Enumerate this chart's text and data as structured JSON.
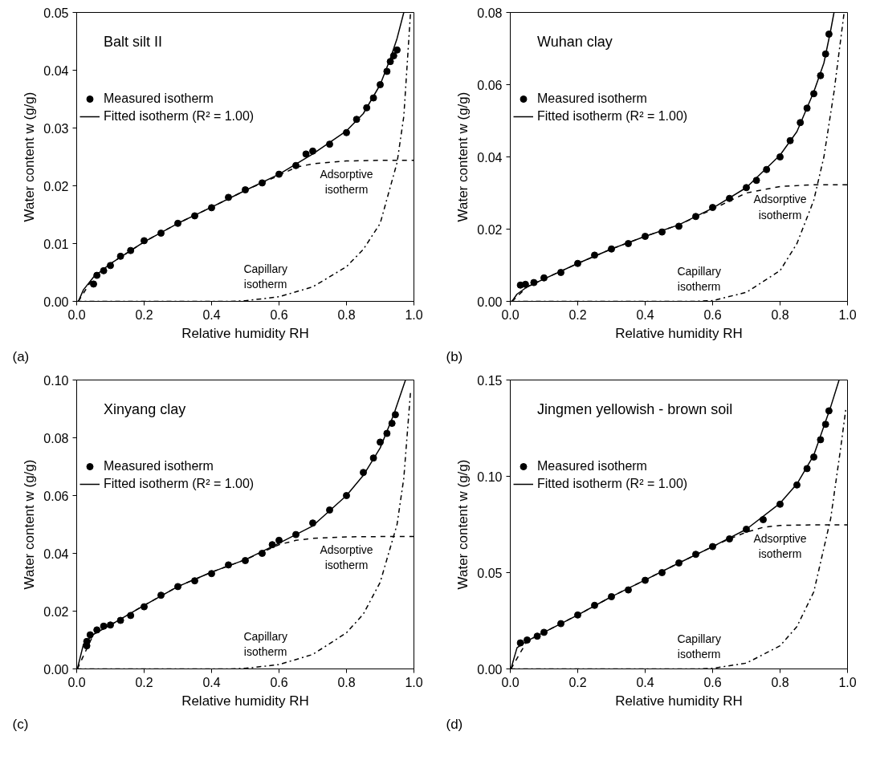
{
  "chart_data": [
    {
      "type": "scatter",
      "title": "Balt silt II",
      "xlabel": "Relative humidity RH",
      "ylabel": "Water content w (g/g)",
      "xlim": [
        0,
        1
      ],
      "ylim": [
        0,
        0.05
      ],
      "xticks": [
        {
          "value": 0,
          "label": "0.0"
        },
        {
          "value": 0.2,
          "label": "0.2"
        },
        {
          "value": 0.4,
          "label": "0.4"
        },
        {
          "value": 0.6,
          "label": "0.6"
        },
        {
          "value": 0.8,
          "label": "0.8"
        },
        {
          "value": 1,
          "label": "1.0"
        }
      ],
      "yticks": [
        {
          "value": 0,
          "label": "0.00"
        },
        {
          "value": 0.01,
          "label": "0.01"
        },
        {
          "value": 0.02,
          "label": "0.02"
        },
        {
          "value": 0.03,
          "label": "0.03"
        },
        {
          "value": 0.04,
          "label": "0.04"
        },
        {
          "value": 0.05,
          "label": "0.05"
        }
      ],
      "grid": false,
      "legend": "top left",
      "annotations": [
        "Adsorptive\nisotherm",
        "Capillary\nisotherm",
        "(a)"
      ],
      "series": [
        {
          "name": "Measured isotherm",
          "marker": "circle",
          "color": "#000000",
          "x": [
            0.05,
            0.06,
            0.08,
            0.1,
            0.13,
            0.16,
            0.2,
            0.25,
            0.3,
            0.35,
            0.4,
            0.45,
            0.5,
            0.55,
            0.6,
            0.65,
            0.68,
            0.7,
            0.75,
            0.8,
            0.83,
            0.86,
            0.88,
            0.9,
            0.92,
            0.93,
            0.94,
            0.95
          ],
          "values": [
            0.003,
            0.0045,
            0.0053,
            0.0062,
            0.0078,
            0.0088,
            0.0105,
            0.0118,
            0.0135,
            0.0148,
            0.0162,
            0.018,
            0.0193,
            0.0205,
            0.022,
            0.0235,
            0.0255,
            0.026,
            0.0272,
            0.0292,
            0.0315,
            0.0335,
            0.0352,
            0.0375,
            0.0398,
            0.0415,
            0.0425,
            0.0435
          ]
        },
        {
          "name": "Fitted isotherm (R² = 1.00)",
          "type": "line",
          "line_style": "solid",
          "color": "#000000",
          "x": [
            0.005,
            0.02,
            0.05,
            0.1,
            0.2,
            0.3,
            0.4,
            0.5,
            0.6,
            0.7,
            0.8,
            0.85,
            0.9,
            0.93,
            0.95,
            0.97
          ],
          "values": [
            0,
            0.002,
            0.0042,
            0.0065,
            0.0103,
            0.0135,
            0.0163,
            0.0192,
            0.022,
            0.0255,
            0.0295,
            0.0325,
            0.0375,
            0.042,
            0.0455,
            0.05
          ]
        },
        {
          "type": "line",
          "line_style": "dashed",
          "color": "#000000",
          "x": [
            0.005,
            0.05,
            0.1,
            0.2,
            0.3,
            0.4,
            0.5,
            0.6,
            0.65,
            0.7,
            0.8,
            0.9,
            1.0
          ],
          "values": [
            0,
            0.0042,
            0.0065,
            0.0103,
            0.0135,
            0.0163,
            0.0192,
            0.0218,
            0.0232,
            0.0238,
            0.0243,
            0.0244,
            0.0244
          ]
        },
        {
          "type": "line",
          "line_style": "dashdot",
          "color": "#000000",
          "x": [
            0,
            0.45,
            0.5,
            0.6,
            0.7,
            0.8,
            0.85,
            0.9,
            0.95,
            0.97,
            0.99
          ],
          "values": [
            0,
            0,
            0.0001,
            0.0008,
            0.0025,
            0.006,
            0.009,
            0.0135,
            0.024,
            0.032,
            0.05
          ]
        }
      ]
    },
    {
      "type": "scatter",
      "title": "Wuhan clay",
      "xlabel": "Relative humidity RH",
      "ylabel": "Water content w (g/g)",
      "xlim": [
        0,
        1
      ],
      "ylim": [
        0,
        0.08
      ],
      "xticks": [
        {
          "value": 0,
          "label": "0.0"
        },
        {
          "value": 0.2,
          "label": "0.2"
        },
        {
          "value": 0.4,
          "label": "0.4"
        },
        {
          "value": 0.6,
          "label": "0.6"
        },
        {
          "value": 0.8,
          "label": "0.8"
        },
        {
          "value": 1,
          "label": "1.0"
        }
      ],
      "yticks": [
        {
          "value": 0,
          "label": "0.00"
        },
        {
          "value": 0.02,
          "label": "0.02"
        },
        {
          "value": 0.04,
          "label": "0.04"
        },
        {
          "value": 0.06,
          "label": "0.06"
        },
        {
          "value": 0.08,
          "label": "0.08"
        }
      ],
      "grid": false,
      "legend": "top left",
      "annotations": [
        "Adsorptive\nisotherm",
        "Capillary\nisotherm",
        "(b)"
      ],
      "series": [
        {
          "name": "Measured isotherm",
          "marker": "circle",
          "color": "#000000",
          "x": [
            0.03,
            0.045,
            0.07,
            0.1,
            0.15,
            0.2,
            0.25,
            0.3,
            0.35,
            0.4,
            0.45,
            0.5,
            0.55,
            0.6,
            0.65,
            0.7,
            0.73,
            0.76,
            0.8,
            0.83,
            0.86,
            0.88,
            0.9,
            0.92,
            0.935,
            0.945
          ],
          "values": [
            0.0045,
            0.0047,
            0.0052,
            0.0065,
            0.008,
            0.0105,
            0.0128,
            0.0145,
            0.016,
            0.018,
            0.0192,
            0.0208,
            0.0235,
            0.026,
            0.0285,
            0.0315,
            0.0335,
            0.0365,
            0.04,
            0.0445,
            0.0495,
            0.0535,
            0.0575,
            0.0625,
            0.0685,
            0.074
          ]
        },
        {
          "name": "Fitted isotherm (R² = 1.00)",
          "type": "line",
          "line_style": "solid",
          "color": "#000000",
          "x": [
            0.005,
            0.02,
            0.05,
            0.1,
            0.2,
            0.3,
            0.4,
            0.5,
            0.6,
            0.7,
            0.8,
            0.85,
            0.9,
            0.93,
            0.95,
            0.96
          ],
          "values": [
            0,
            0.002,
            0.004,
            0.0062,
            0.0105,
            0.0145,
            0.018,
            0.0212,
            0.0258,
            0.0315,
            0.0405,
            0.047,
            0.058,
            0.066,
            0.075,
            0.08
          ]
        },
        {
          "type": "line",
          "line_style": "dashed",
          "color": "#000000",
          "x": [
            0.005,
            0.05,
            0.1,
            0.2,
            0.3,
            0.4,
            0.5,
            0.6,
            0.65,
            0.7,
            0.8,
            0.9,
            1.0
          ],
          "values": [
            0,
            0.004,
            0.0062,
            0.0105,
            0.0145,
            0.018,
            0.0212,
            0.0255,
            0.0278,
            0.03,
            0.0318,
            0.0323,
            0.0323
          ]
        },
        {
          "type": "line",
          "line_style": "dashdot",
          "color": "#000000",
          "x": [
            0,
            0.55,
            0.6,
            0.7,
            0.8,
            0.85,
            0.9,
            0.93,
            0.96,
            0.99
          ],
          "values": [
            0,
            0,
            0.0002,
            0.0025,
            0.0085,
            0.016,
            0.028,
            0.04,
            0.058,
            0.08
          ]
        }
      ]
    },
    {
      "type": "scatter",
      "title": "Xinyang clay",
      "xlabel": "Relative humidity RH",
      "ylabel": "Water content w (g/g)",
      "xlim": [
        0,
        1
      ],
      "ylim": [
        0,
        0.1
      ],
      "xticks": [
        {
          "value": 0,
          "label": "0.0"
        },
        {
          "value": 0.2,
          "label": "0.2"
        },
        {
          "value": 0.4,
          "label": "0.4"
        },
        {
          "value": 0.6,
          "label": "0.6"
        },
        {
          "value": 0.8,
          "label": "0.8"
        },
        {
          "value": 1,
          "label": "1.0"
        }
      ],
      "yticks": [
        {
          "value": 0,
          "label": "0.00"
        },
        {
          "value": 0.02,
          "label": "0.02"
        },
        {
          "value": 0.04,
          "label": "0.04"
        },
        {
          "value": 0.06,
          "label": "0.06"
        },
        {
          "value": 0.08,
          "label": "0.08"
        },
        {
          "value": 0.1,
          "label": "0.10"
        }
      ],
      "grid": false,
      "legend": "top left",
      "annotations": [
        "Adsorptive\nisotherm",
        "Capillary\nisotherm",
        "(c)"
      ],
      "series": [
        {
          "name": "Measured isotherm",
          "marker": "circle",
          "color": "#000000",
          "x": [
            0.03,
            0.03,
            0.04,
            0.06,
            0.08,
            0.1,
            0.13,
            0.16,
            0.2,
            0.25,
            0.3,
            0.35,
            0.4,
            0.45,
            0.5,
            0.55,
            0.58,
            0.6,
            0.65,
            0.7,
            0.75,
            0.8,
            0.85,
            0.88,
            0.9,
            0.92,
            0.935,
            0.945
          ],
          "values": [
            0.008,
            0.0095,
            0.0118,
            0.0135,
            0.0148,
            0.0152,
            0.0168,
            0.0185,
            0.0215,
            0.0255,
            0.0285,
            0.0305,
            0.033,
            0.036,
            0.0375,
            0.04,
            0.043,
            0.0445,
            0.0465,
            0.0505,
            0.055,
            0.06,
            0.068,
            0.073,
            0.0785,
            0.0815,
            0.085,
            0.088
          ]
        },
        {
          "name": "Fitted isotherm (R² = 1.00)",
          "type": "line",
          "line_style": "solid",
          "color": "#000000",
          "x": [
            0.002,
            0.02,
            0.05,
            0.1,
            0.2,
            0.3,
            0.4,
            0.5,
            0.6,
            0.7,
            0.8,
            0.85,
            0.9,
            0.94,
            0.975
          ],
          "values": [
            0,
            0.0085,
            0.012,
            0.0152,
            0.022,
            0.0285,
            0.0335,
            0.0378,
            0.0435,
            0.0495,
            0.06,
            0.067,
            0.0765,
            0.088,
            0.1
          ]
        },
        {
          "type": "line",
          "line_style": "dashed",
          "color": "#000000",
          "x": [
            0.002,
            0.05,
            0.1,
            0.2,
            0.3,
            0.4,
            0.5,
            0.6,
            0.65,
            0.7,
            0.8,
            0.9,
            1.0
          ],
          "values": [
            0,
            0.012,
            0.0152,
            0.022,
            0.0285,
            0.0335,
            0.0378,
            0.043,
            0.0445,
            0.0452,
            0.0457,
            0.0458,
            0.0458
          ]
        },
        {
          "type": "line",
          "line_style": "dashdot",
          "color": "#000000",
          "x": [
            0,
            0.45,
            0.5,
            0.6,
            0.7,
            0.8,
            0.85,
            0.9,
            0.95,
            0.97,
            0.99
          ],
          "values": [
            0,
            0,
            0.0002,
            0.0015,
            0.005,
            0.0125,
            0.019,
            0.03,
            0.05,
            0.066,
            0.096
          ]
        }
      ]
    },
    {
      "type": "scatter",
      "title": "Jingmen yellowish - brown soil",
      "xlabel": "Relative humidity RH",
      "ylabel": "Water content w (g/g)",
      "xlim": [
        0,
        1
      ],
      "ylim": [
        0,
        0.15
      ],
      "xticks": [
        {
          "value": 0,
          "label": "0.0"
        },
        {
          "value": 0.2,
          "label": "0.2"
        },
        {
          "value": 0.4,
          "label": "0.4"
        },
        {
          "value": 0.6,
          "label": "0.6"
        },
        {
          "value": 0.8,
          "label": "0.8"
        },
        {
          "value": 1,
          "label": "1.0"
        }
      ],
      "yticks": [
        {
          "value": 0,
          "label": "0.00"
        },
        {
          "value": 0.05,
          "label": "0.05"
        },
        {
          "value": 0.1,
          "label": "0.10"
        },
        {
          "value": 0.15,
          "label": "0.15"
        }
      ],
      "grid": false,
      "legend": "top left",
      "annotations": [
        "Adsorptive\nisotherm",
        "Capillary\nisotherm",
        "(d)"
      ],
      "series": [
        {
          "name": "Measured isotherm",
          "marker": "circle",
          "color": "#000000",
          "x": [
            0.03,
            0.05,
            0.08,
            0.1,
            0.15,
            0.2,
            0.25,
            0.3,
            0.35,
            0.4,
            0.45,
            0.5,
            0.55,
            0.6,
            0.65,
            0.7,
            0.75,
            0.8,
            0.85,
            0.88,
            0.9,
            0.92,
            0.935,
            0.945
          ],
          "values": [
            0.0135,
            0.015,
            0.017,
            0.019,
            0.0235,
            0.028,
            0.033,
            0.0375,
            0.041,
            0.046,
            0.05,
            0.055,
            0.0595,
            0.0635,
            0.0675,
            0.0725,
            0.0775,
            0.0855,
            0.0955,
            0.104,
            0.11,
            0.119,
            0.127,
            0.134
          ]
        },
        {
          "name": "Fitted isotherm (R² = 1.00)",
          "type": "line",
          "line_style": "solid",
          "color": "#000000",
          "x": [
            0.002,
            0.02,
            0.05,
            0.1,
            0.2,
            0.3,
            0.4,
            0.5,
            0.6,
            0.7,
            0.8,
            0.85,
            0.9,
            0.95,
            0.975
          ],
          "values": [
            0,
            0.011,
            0.0145,
            0.019,
            0.028,
            0.0375,
            0.0462,
            0.055,
            0.0635,
            0.0725,
            0.086,
            0.096,
            0.111,
            0.136,
            0.15
          ]
        },
        {
          "type": "line",
          "line_style": "dashed",
          "color": "#000000",
          "x": [
            0.002,
            0.05,
            0.1,
            0.2,
            0.3,
            0.4,
            0.5,
            0.6,
            0.65,
            0.7,
            0.75,
            0.8,
            0.9,
            1.0
          ],
          "values": [
            0,
            0.0145,
            0.019,
            0.028,
            0.0375,
            0.0462,
            0.055,
            0.0635,
            0.0675,
            0.071,
            0.0735,
            0.0745,
            0.0748,
            0.0748
          ]
        },
        {
          "type": "line",
          "line_style": "dashdot",
          "color": "#000000",
          "x": [
            0,
            0.55,
            0.6,
            0.7,
            0.8,
            0.85,
            0.9,
            0.95,
            0.98,
            0.995
          ],
          "values": [
            0,
            0,
            0.0003,
            0.003,
            0.012,
            0.022,
            0.04,
            0.078,
            0.115,
            0.135
          ]
        }
      ]
    }
  ]
}
